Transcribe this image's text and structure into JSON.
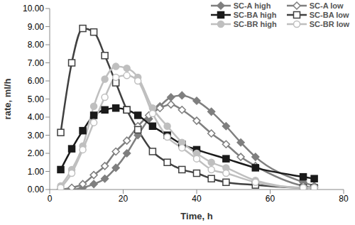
{
  "chart_data": {
    "type": "line",
    "x_label": "Time, h",
    "y_label": "rate, ml/h",
    "xlim": [
      0,
      80
    ],
    "xticks": [
      0,
      20,
      40,
      60,
      80
    ],
    "ylim": [
      0,
      10
    ],
    "yticks": [
      {
        "value": 0,
        "label": "0.00"
      },
      {
        "value": 1,
        "label": "1.00"
      },
      {
        "value": 2,
        "label": "2.00"
      },
      {
        "value": 3,
        "label": "3.00"
      },
      {
        "value": 4,
        "label": "4.00"
      },
      {
        "value": 5,
        "label": "5.00"
      },
      {
        "value": 6,
        "label": "6.00"
      },
      {
        "value": 7,
        "label": "7.00"
      },
      {
        "value": 8,
        "label": "8.00"
      },
      {
        "value": 9,
        "label": "9.00"
      },
      {
        "value": 10,
        "label": "10.00"
      }
    ],
    "grid": false,
    "legend": "top-right",
    "line_style": "solid",
    "series": [
      {
        "name": "SC-A high",
        "color": "#7f7f7f",
        "marker": "diamond",
        "x": [
          3,
          6,
          9,
          12,
          15,
          18,
          21,
          24,
          27,
          30,
          33,
          36,
          40,
          44,
          48,
          52,
          56,
          69,
          72
        ],
        "values": [
          0.0,
          0.0,
          0.1,
          0.3,
          0.6,
          1.2,
          2.0,
          3.0,
          3.9,
          4.6,
          5.1,
          5.2,
          4.9,
          4.3,
          3.5,
          2.6,
          1.8,
          0.4,
          0.2
        ]
      },
      {
        "name": "SC-A low",
        "color": "#7f7f7f",
        "marker": "open_diamond",
        "x": [
          3,
          6,
          9,
          12,
          15,
          18,
          21,
          24,
          27,
          30,
          33,
          36,
          40,
          44,
          48,
          52,
          56,
          69,
          72
        ],
        "values": [
          0.0,
          0.1,
          0.3,
          0.8,
          1.3,
          2.1,
          2.7,
          3.5,
          4.1,
          4.5,
          4.7,
          4.4,
          3.8,
          3.1,
          2.5,
          1.8,
          1.3,
          0.2,
          0.1
        ]
      },
      {
        "name": "SC-BA high",
        "color": "#1a1a1a",
        "marker": "square",
        "x": [
          3,
          6,
          9,
          12,
          15,
          18,
          21,
          24,
          28,
          32,
          36,
          40,
          48,
          56,
          69,
          72
        ],
        "values": [
          1.1,
          2.25,
          3.25,
          4.1,
          4.4,
          4.5,
          4.4,
          4.1,
          3.5,
          3.0,
          2.5,
          2.2,
          1.7,
          1.2,
          0.7,
          0.6
        ]
      },
      {
        "name": "SC-BA low",
        "color": "#404040",
        "marker": "open_square",
        "x": [
          3,
          6,
          9,
          12,
          15,
          18,
          21,
          24,
          28,
          32,
          36,
          40,
          44,
          48,
          56,
          69,
          72
        ],
        "values": [
          3.15,
          7.0,
          8.9,
          8.7,
          7.4,
          5.9,
          4.4,
          3.3,
          2.1,
          1.5,
          1.1,
          0.9,
          0.6,
          0.4,
          0.25,
          0.1,
          0.1
        ]
      },
      {
        "name": "SC-BR high",
        "color": "#bfbfbf",
        "marker": "circle",
        "x": [
          3,
          6,
          9,
          12,
          15,
          18,
          21,
          24,
          28,
          32,
          36,
          40,
          44,
          48,
          56,
          69,
          72
        ],
        "values": [
          0.2,
          1.1,
          2.4,
          4.6,
          6.1,
          6.8,
          6.7,
          6.2,
          4.5,
          3.5,
          2.6,
          2.0,
          1.5,
          1.2,
          0.5,
          0.1,
          0.1
        ]
      },
      {
        "name": "SC-BR low",
        "color": "#bfbfbf",
        "marker": "open_circle",
        "x": [
          3,
          6,
          9,
          12,
          15,
          18,
          21,
          24,
          28,
          32,
          36,
          40,
          44,
          48,
          56,
          69,
          72
        ],
        "values": [
          0.1,
          0.9,
          2.2,
          3.7,
          5.1,
          6.2,
          6.3,
          6.0,
          4.2,
          2.9,
          2.3,
          1.7,
          1.1,
          0.9,
          0.4,
          0.1,
          0.1
        ]
      }
    ]
  }
}
